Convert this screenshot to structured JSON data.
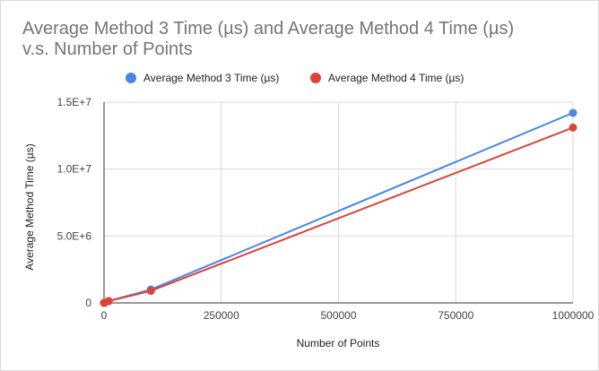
{
  "chart_data": {
    "type": "line",
    "title_lines": [
      "Average Method 3 Time (µs) and Average Method 4 Time (µs)",
      "v.s. Number of Points"
    ],
    "xlabel": "Number of Points",
    "ylabel": "Average Method Time (µs)",
    "xlim": [
      0,
      1000000
    ],
    "ylim": [
      0,
      15000000
    ],
    "x_ticks": [
      0,
      250000,
      500000,
      750000,
      1000000
    ],
    "x_tick_labels": [
      "0",
      "250000",
      "500000",
      "750000",
      "1000000"
    ],
    "y_ticks": [
      0,
      5000000,
      10000000,
      15000000
    ],
    "y_tick_labels": [
      "0",
      "5.0E+6",
      "1.0E+7",
      "1.5E+7"
    ],
    "grid": true,
    "legend_position": "top",
    "x": [
      10,
      100,
      1000,
      10000,
      100000,
      1000000
    ],
    "series": [
      {
        "name": "Average Method 3 Time (µs)",
        "color": "#4a86e8",
        "values": [
          10,
          140,
          1400,
          140000,
          1000000,
          14200000
        ]
      },
      {
        "name": "Average Method 4 Time (µs)",
        "color": "#db4437",
        "values": [
          10,
          130,
          1300,
          130000,
          900000,
          13100000
        ]
      }
    ]
  }
}
